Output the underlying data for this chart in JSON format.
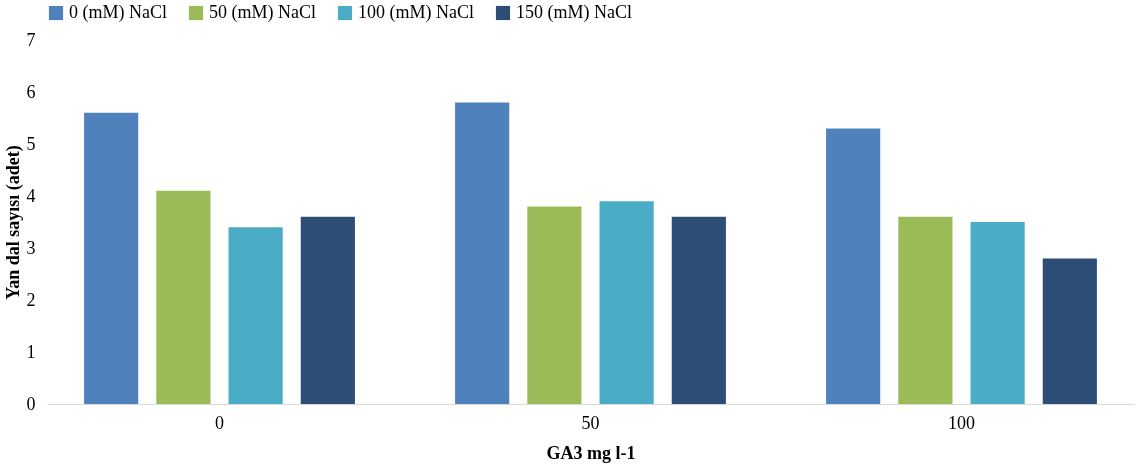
{
  "chart_data": {
    "type": "bar",
    "xlabel": "GA3 mg l-1",
    "ylabel": "Yan dal sayısı (adet)",
    "categories": [
      "0",
      "50",
      "100"
    ],
    "series": [
      {
        "name": "0 (mM) NaCl",
        "color": "#4f81bd",
        "values": [
          5.6,
          5.8,
          5.3
        ]
      },
      {
        "name": "50 (mM) NaCl",
        "color": "#9bbb59",
        "values": [
          4.1,
          3.8,
          3.6
        ]
      },
      {
        "name": "100 (mM) NaCl",
        "color": "#4bacc6",
        "values": [
          3.4,
          3.9,
          3.5
        ]
      },
      {
        "name": "150 (mM) NaCl",
        "color": "#2c4d75",
        "values": [
          3.6,
          3.6,
          2.8
        ]
      }
    ],
    "ylim": [
      0,
      7
    ],
    "yticks": [
      0,
      1,
      2,
      3,
      4,
      5,
      6,
      7
    ],
    "grid": false,
    "legend": "top"
  }
}
